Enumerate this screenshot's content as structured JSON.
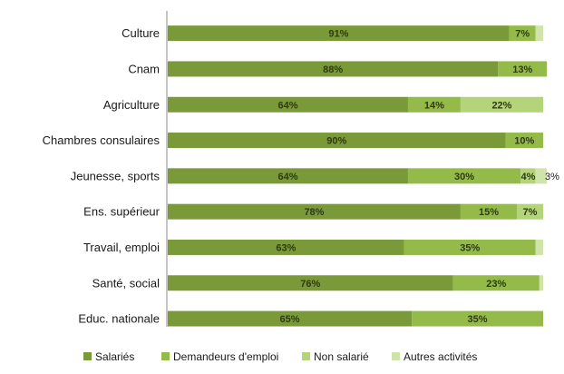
{
  "chart_data": {
    "type": "bar",
    "orientation": "horizontal",
    "stacked": true,
    "categories": [
      "Culture",
      "Cnam",
      "Agriculture",
      "Chambres consulaires",
      "Jeunesse, sports",
      "Ens. supérieur",
      "Travail, emploi",
      "Santé, social",
      "Educ. nationale"
    ],
    "series": [
      {
        "name": "Salariés",
        "color": "#7a9a3a",
        "values": [
          91,
          88,
          64,
          90,
          64,
          78,
          63,
          76,
          65
        ],
        "labels": [
          "91%",
          "88%",
          "64%",
          "90%",
          "64%",
          "78%",
          "63%",
          "76%",
          "65%"
        ]
      },
      {
        "name": "Demandeurs d'emploi",
        "color": "#94bb49",
        "values": [
          7,
          13,
          14,
          10,
          30,
          15,
          35,
          23,
          35
        ],
        "labels": [
          "7%",
          "13%",
          "14%",
          "10%",
          "30%",
          "15%",
          "35%",
          "23%",
          "35%"
        ]
      },
      {
        "name": "Non salarié",
        "color": "#b4d479",
        "values": [
          0,
          0,
          22,
          0,
          4,
          7,
          0,
          0,
          0
        ],
        "labels": [
          "",
          "",
          "22%",
          "",
          "4%",
          "7%",
          "",
          "",
          ""
        ]
      },
      {
        "name": "Autres activités",
        "color": "#cfe3ab",
        "values": [
          2,
          0,
          0,
          0,
          3,
          0,
          2,
          1,
          0
        ],
        "labels": [
          "",
          "",
          "",
          "",
          "3%",
          "",
          "",
          "",
          ""
        ]
      }
    ],
    "legend_position": "bottom",
    "grid": false,
    "xlim": [
      0,
      100
    ]
  }
}
